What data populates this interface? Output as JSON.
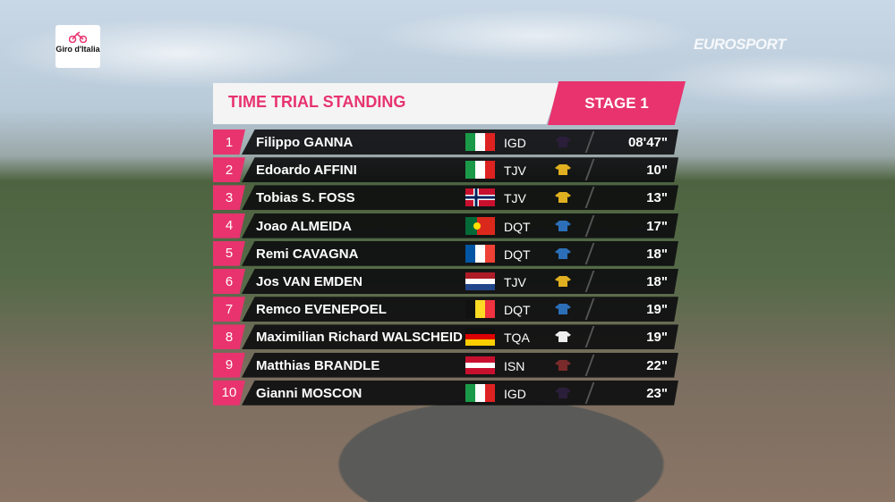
{
  "logo": "Giro d'Italia",
  "broadcaster": "EUROSPORT",
  "header": {
    "title": "TIME TRIAL STANDING",
    "stage": "STAGE 1"
  },
  "table": {
    "rows": [
      [
        "1",
        "Filippo GANNA",
        "IGD",
        "08'47\""
      ],
      [
        "2",
        "Edoardo AFFINI",
        "TJV",
        "10\""
      ],
      [
        "3",
        "Tobias S. FOSS",
        "TJV",
        "13\""
      ],
      [
        "4",
        "Joao ALMEIDA",
        "DQT",
        "17\""
      ],
      [
        "5",
        "Remi CAVAGNA",
        "DQT",
        "18\""
      ],
      [
        "6",
        "Jos VAN EMDEN",
        "TJV",
        "18\""
      ],
      [
        "7",
        "Remco EVENEPOEL",
        "DQT",
        "19\""
      ],
      [
        "8",
        "Maximilian Richard WALSCHEID",
        "TQA",
        "19\""
      ],
      [
        "9",
        "Matthias BRANDLE",
        "ISN",
        "22\""
      ],
      [
        "10",
        "Gianni MOSCON",
        "IGD",
        "23\""
      ]
    ]
  }
}
